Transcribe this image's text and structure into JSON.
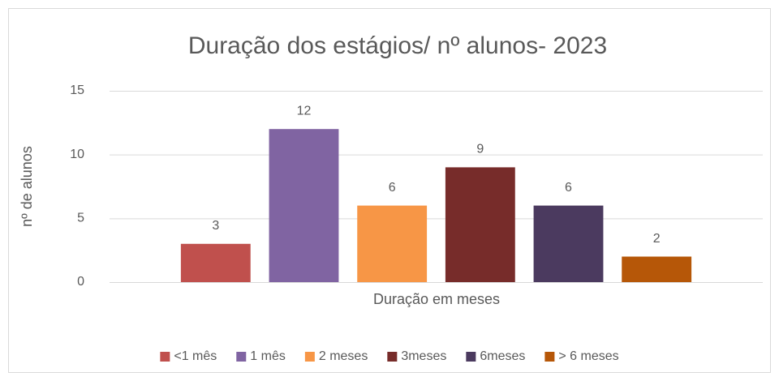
{
  "chart_data": {
    "type": "bar",
    "title": "Duração dos estágios/ nº alunos- 2023",
    "x_label": "Duração em meses",
    "y_label": "nº de alunos",
    "categories": [
      null
    ],
    "series": [
      {
        "name": "<1 mês",
        "color": "#c0504d",
        "values": [
          3
        ]
      },
      {
        "name": "1 mês",
        "color": "#8064a2",
        "values": [
          12
        ]
      },
      {
        "name": "2 meses",
        "color": "#f79646",
        "values": [
          6
        ]
      },
      {
        "name": "3meses",
        "color": "#772c2a",
        "values": [
          9
        ]
      },
      {
        "name": "6meses",
        "color": "#4b3a5f",
        "values": [
          6
        ]
      },
      {
        "name": "> 6 meses",
        "color": "#b65708",
        "values": [
          2
        ]
      }
    ],
    "ylim": [
      0,
      15
    ],
    "yticks": [
      0,
      5,
      10,
      15
    ],
    "grid": true,
    "legend": "bottom"
  }
}
